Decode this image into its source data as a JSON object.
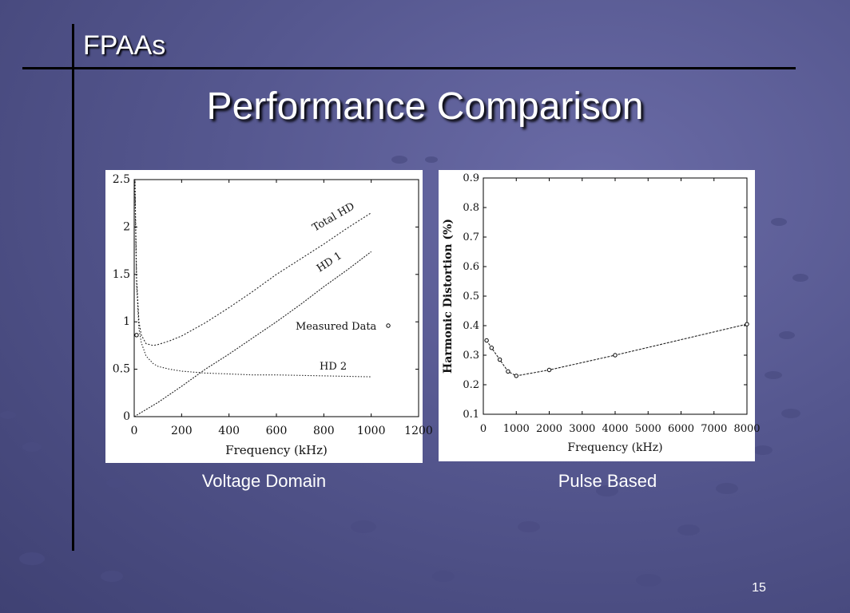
{
  "slide": {
    "section_title": "FPAAs",
    "title": "Performance Comparison",
    "page_number": "15",
    "captions": {
      "left": "Voltage Domain",
      "right": "Pulse Based"
    },
    "colors": {
      "background": "#55578f",
      "rule": "#000000",
      "text": "#ffffff"
    }
  },
  "chart_data": [
    {
      "type": "line",
      "title": "",
      "xlabel": "Frequency (kHz)",
      "ylabel": "",
      "xlim": [
        0,
        1200
      ],
      "ylim": [
        0,
        2.5
      ],
      "xticks": [
        "0",
        "200",
        "400",
        "600",
        "800",
        "1000",
        "1200"
      ],
      "yticks": [
        "0",
        "0.5",
        "1",
        "1.5",
        "2",
        "2.5"
      ],
      "grid": false,
      "series": [
        {
          "name": "Total HD",
          "x": [
            3,
            5,
            10,
            20,
            30,
            50,
            80,
            100,
            150,
            200,
            300,
            400,
            500,
            600,
            700,
            800,
            900,
            1000
          ],
          "values": [
            2.55,
            2.2,
            1.45,
            1.0,
            0.86,
            0.77,
            0.75,
            0.76,
            0.8,
            0.85,
            0.99,
            1.15,
            1.32,
            1.5,
            1.66,
            1.82,
            1.99,
            2.15
          ]
        },
        {
          "name": "HD 1",
          "x": [
            0,
            100,
            200,
            300,
            400,
            500,
            600,
            700,
            800,
            900,
            1000
          ],
          "values": [
            0.0,
            0.15,
            0.32,
            0.5,
            0.66,
            0.83,
            1.0,
            1.18,
            1.37,
            1.55,
            1.74
          ]
        },
        {
          "name": "HD 2",
          "x": [
            3,
            5,
            10,
            20,
            30,
            50,
            80,
            100,
            150,
            200,
            300,
            400,
            500,
            600,
            800,
            1000
          ],
          "values": [
            2.5,
            2.1,
            1.4,
            0.93,
            0.78,
            0.64,
            0.56,
            0.53,
            0.5,
            0.48,
            0.46,
            0.45,
            0.44,
            0.44,
            0.43,
            0.42
          ]
        },
        {
          "name": "Measured Data",
          "marker": "o",
          "x": [
            10
          ],
          "values": [
            0.86
          ]
        }
      ],
      "annotations": [
        {
          "text": "Total HD"
        },
        {
          "text": "HD 1"
        },
        {
          "text": "HD 2"
        },
        {
          "text": "Measured Data"
        }
      ]
    },
    {
      "type": "line",
      "title": "",
      "xlabel": "Frequency (kHz)",
      "ylabel": "Harmonic Distortion (%)",
      "xlim": [
        0,
        8000
      ],
      "ylim": [
        0.1,
        0.9
      ],
      "xticks": [
        "0",
        "1000",
        "2000",
        "3000",
        "4000",
        "5000",
        "6000",
        "7000",
        "8000"
      ],
      "yticks": [
        "0.1",
        "0.2",
        "0.3",
        "0.4",
        "0.5",
        "0.6",
        "0.7",
        "0.8",
        "0.9"
      ],
      "grid": false,
      "series": [
        {
          "name": "",
          "marker": "o",
          "x": [
            100,
            250,
            500,
            750,
            1000,
            2000,
            4000,
            8000
          ],
          "values": [
            0.35,
            0.325,
            0.285,
            0.245,
            0.23,
            0.25,
            0.3,
            0.405
          ]
        }
      ]
    }
  ]
}
